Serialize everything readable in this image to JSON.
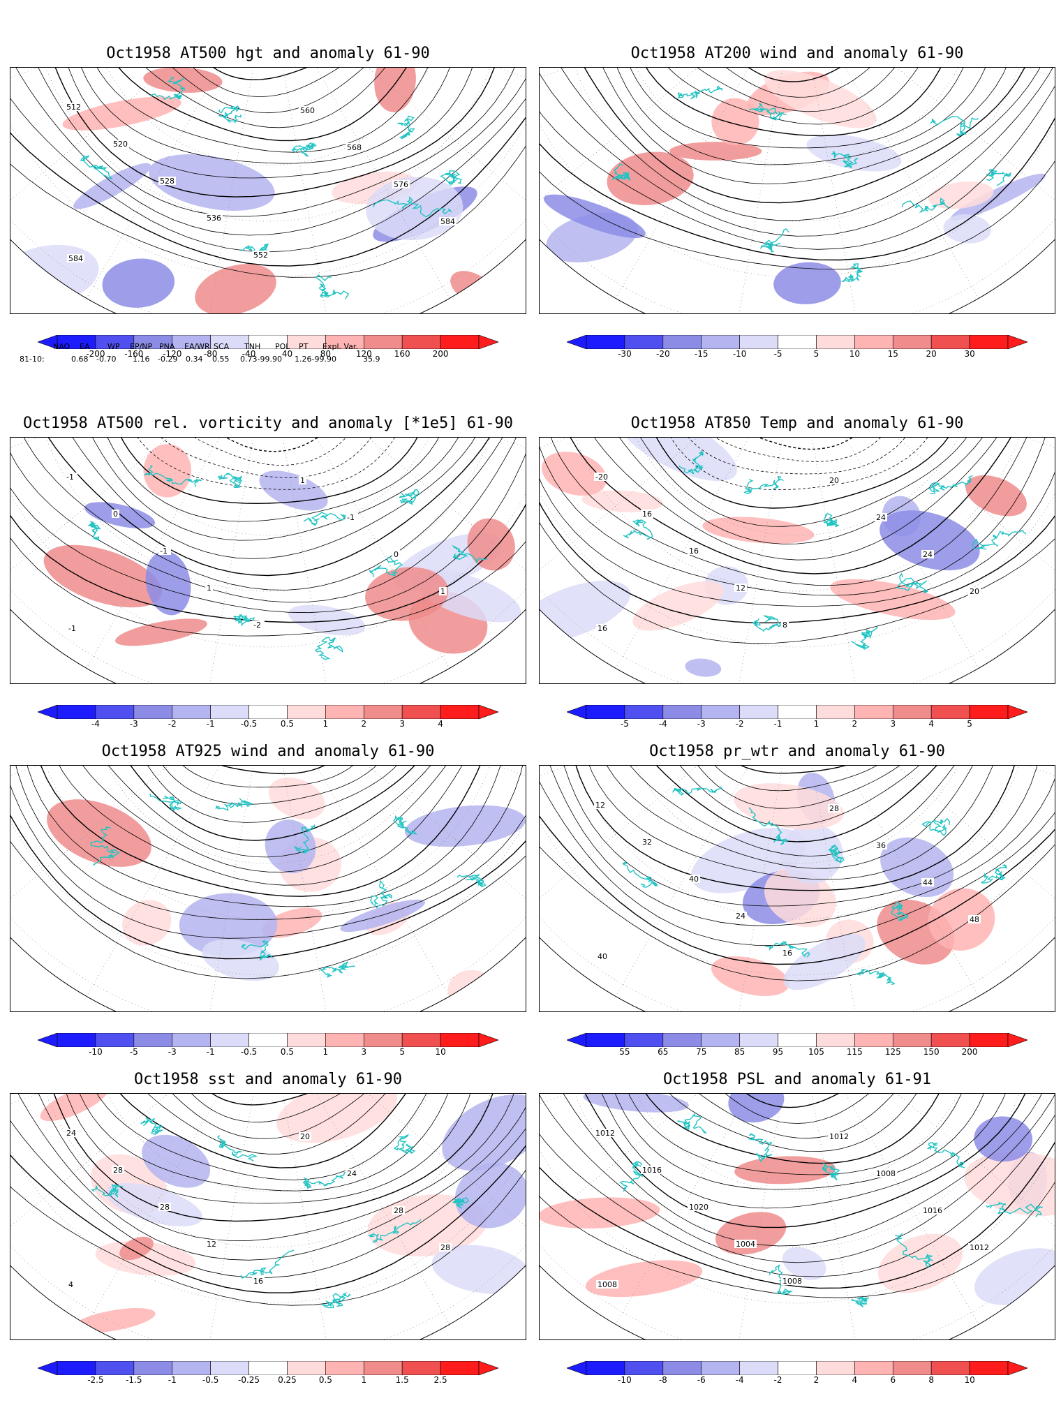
{
  "panels": [
    {
      "id": "hgt500",
      "title": "Oct1958 AT500 hgt and anomaly 61-90",
      "contour_labels": [
        "512",
        "520",
        "528",
        "536",
        "552",
        "560",
        "568",
        "576",
        "584",
        "584"
      ],
      "colorbar": [
        "-200",
        "-160",
        "-120",
        "-80",
        "-40",
        "40",
        "80",
        "120",
        "160",
        "200"
      ]
    },
    {
      "id": "wind200",
      "title": "Oct1958 AT200 wind and anomaly 61-90",
      "contour_labels": [],
      "colorbar": [
        "-30",
        "-20",
        "-15",
        "-10",
        "-5",
        "5",
        "10",
        "15",
        "20",
        "30"
      ]
    },
    {
      "id": "vort500",
      "title": "Oct1958 AT500 rel. vorticity and anomaly [*1e5] 61-90",
      "contour_labels": [
        "-1",
        "0",
        "-1",
        "1",
        "-2",
        "1",
        "-1",
        "0",
        "1",
        "-1"
      ],
      "colorbar": [
        "-4",
        "-3",
        "-2",
        "-1",
        "-0.5",
        "0.5",
        "1",
        "2",
        "3",
        "4"
      ]
    },
    {
      "id": "temp850",
      "title": "Oct1958 AT850 Temp and anomaly 61-90",
      "contour_labels": [
        "-20",
        "16",
        "16",
        "12",
        "8",
        "20",
        "24",
        "24",
        "20",
        "16"
      ],
      "colorbar": [
        "-5",
        "-4",
        "-3",
        "-2",
        "-1",
        "1",
        "2",
        "3",
        "4",
        "5"
      ]
    },
    {
      "id": "wind925",
      "title": "Oct1958 AT925 wind and anomaly 61-90",
      "contour_labels": [],
      "colorbar": [
        "-10",
        "-5",
        "-3",
        "-1",
        "-0.5",
        "0.5",
        "1",
        "3",
        "5",
        "10"
      ]
    },
    {
      "id": "prwtr",
      "title": "Oct1958 pr_wtr and anomaly 61-90",
      "contour_labels": [
        "12",
        "32",
        "40",
        "24",
        "16",
        "28",
        "36",
        "44",
        "48",
        "40"
      ],
      "colorbar": [
        "55",
        "65",
        "75",
        "85",
        "95",
        "105",
        "115",
        "125",
        "150",
        "200"
      ]
    },
    {
      "id": "sst",
      "title": "Oct1958 sst and anomaly 61-90",
      "contour_labels": [
        "24",
        "28",
        "28",
        "12",
        "16",
        "20",
        "24",
        "28",
        "28",
        "4"
      ],
      "colorbar": [
        "-2.5",
        "-1.5",
        "-1",
        "-0.5",
        "-0.25",
        "0.25",
        "0.5",
        "1",
        "1.5",
        "2.5"
      ]
    },
    {
      "id": "psl",
      "title": "Oct1958 PSL and anomaly 61-91",
      "contour_labels": [
        "1012",
        "1016",
        "1020",
        "1004",
        "1008",
        "1012",
        "1008",
        "1016",
        "1012",
        "1008"
      ],
      "colorbar": [
        "-10",
        "-8",
        "-6",
        "-4",
        "-2",
        "2",
        "4",
        "6",
        "8",
        "10"
      ]
    }
  ],
  "indices": {
    "names": [
      "NAO",
      "EA",
      "WP",
      "EP/NP",
      "PNA",
      "EA/WR",
      "SCA",
      "TNH",
      "POL",
      "PT",
      "Expl. Var."
    ],
    "row_label": "81-10:",
    "values": [
      "0.68",
      "-0.70",
      "1.16",
      "-0.29",
      "0.34",
      "0.55",
      "0.73-99.90",
      "1.26-99.90",
      "35.9"
    ]
  },
  "colors": {
    "coast": "#22c3c3",
    "contour": "#000000",
    "scale": [
      "#1c1cff",
      "#5050f0",
      "#8c8ce6",
      "#b4b4f0",
      "#dcdcf8",
      "#ffffff",
      "#ffdcdc",
      "#ffb4b4",
      "#f08c8c",
      "#f05050",
      "#ff1c1c"
    ]
  }
}
